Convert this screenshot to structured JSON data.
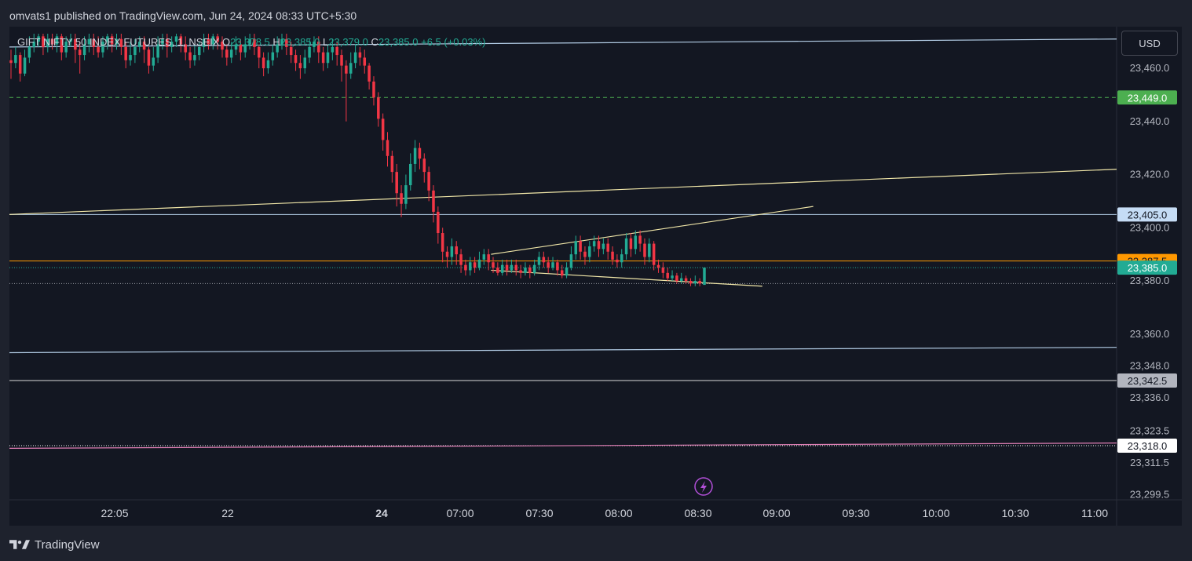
{
  "header": {
    "publisher": "omvats1 published on TradingView.com, Jun 24, 2024 08:33 UTC+5:30"
  },
  "legend": {
    "symbol": "GIFT NIFTY 50 INDEX FUTURES, 1, NSEIX",
    "o_label": "O",
    "o_value": "23,378.5",
    "h_label": "H",
    "h_value": "23,385.0",
    "l_label": "L",
    "l_value": "23,379.0",
    "c_label": "C",
    "c_value": "23,385.0",
    "change": "+6.5 (+0.03%)"
  },
  "currency_button": "USD",
  "footer": {
    "brand": "TradingView"
  },
  "colors": {
    "up": "#22ab94",
    "down": "#f23645",
    "background": "#131722",
    "frame": "#1e222d",
    "trendline": "#f0e6a8",
    "blue_line": "#b3cde6",
    "orange_line": "#ff9800",
    "green_dashed": "#4caf50",
    "pink_line": "#e07fb5",
    "white_line": "#d9d9d9",
    "lightning": "#b24fd8"
  },
  "chart_data": {
    "type": "candlestick",
    "symbol": "GIFT NIFTY 50 INDEX FUTURES",
    "interval": "1",
    "exchange": "NSEIX",
    "currency": "USD",
    "y_range": [
      23293,
      23473
    ],
    "y_ticks": [
      "23,460.0",
      "23,440.0",
      "23,420.0",
      "23,400.0",
      "23,380.0",
      "23,360.0",
      "23,348.0",
      "23,336.0",
      "23,323.5",
      "23,311.5",
      "23,299.5"
    ],
    "y_tick_values": [
      23460,
      23440,
      23420,
      23400,
      23380,
      23360,
      23348,
      23336,
      23323.5,
      23311.5,
      23299.5
    ],
    "x_ticks": [
      {
        "label": "22:05",
        "bold": false
      },
      {
        "label": "22",
        "bold": false
      },
      {
        "label": "24",
        "bold": true
      },
      {
        "label": "07:00",
        "bold": false
      },
      {
        "label": "07:30",
        "bold": false
      },
      {
        "label": "08:00",
        "bold": false
      },
      {
        "label": "08:30",
        "bold": false
      },
      {
        "label": "09:00",
        "bold": false
      },
      {
        "label": "09:30",
        "bold": false
      },
      {
        "label": "10:00",
        "bold": false
      },
      {
        "label": "10:30",
        "bold": false
      },
      {
        "label": "11:00",
        "bold": false
      }
    ],
    "price_tags": [
      {
        "label": "23,449.0",
        "value": 23449,
        "bg": "#4caf50",
        "fg": "#ffffff"
      },
      {
        "label": "23,405.0",
        "value": 23405,
        "bg": "#c5dcf5",
        "fg": "#131722"
      },
      {
        "label": "23,387.5",
        "value": 23387.5,
        "bg": "#ff9800",
        "fg": "#131722"
      },
      {
        "label": "23,385.0",
        "value": 23385,
        "bg": "#22ab94",
        "fg": "#ffffff"
      },
      {
        "label": "23,342.5",
        "value": 23342.5,
        "bg": "#b2b5be",
        "fg": "#131722"
      },
      {
        "label": "23,318.0",
        "value": 23318,
        "bg": "#ffffff",
        "fg": "#131722"
      }
    ],
    "horizontal_lines": [
      {
        "value": 23449,
        "style": "dashed",
        "color": "#4caf50"
      },
      {
        "value": 23405,
        "style": "solid",
        "color": "#b3cde6"
      },
      {
        "value": 23387.5,
        "style": "solid",
        "color": "#ff9800"
      },
      {
        "value": 23385,
        "style": "dotted",
        "color": "#22ab94"
      },
      {
        "value": 23379,
        "style": "dotted",
        "color": "#9598a1"
      },
      {
        "value": 23342.5,
        "style": "solid",
        "color": "#d9d9d9"
      },
      {
        "value": 23318,
        "style": "dotted",
        "color": "#ffffff"
      }
    ],
    "trend_lines": [
      {
        "from": {
          "t": 0,
          "p": 23468
        },
        "to": {
          "t": 1,
          "p": 23471
        },
        "color": "#b3cde6",
        "extend": "right"
      },
      {
        "from": {
          "t": 0,
          "p": 23405
        },
        "to": {
          "t": 1,
          "p": 23422
        },
        "color": "#f0e6a8",
        "extend": "right"
      },
      {
        "from": {
          "t": 0,
          "p": 23353
        },
        "to": {
          "t": 1,
          "p": 23355
        },
        "color": "#b3cde6",
        "extend": "right"
      },
      {
        "from": {
          "t": 0,
          "p": 23317
        },
        "to": {
          "t": 1,
          "p": 23319
        },
        "color": "#e07fb5",
        "extend": "right"
      },
      {
        "from": {
          "t": 0.435,
          "p": 23390
        },
        "to": {
          "t": 0.726,
          "p": 23408
        },
        "color": "#f0e6a8",
        "extend": "none"
      },
      {
        "from": {
          "t": 0.435,
          "p": 23384
        },
        "to": {
          "t": 0.68,
          "p": 23378
        },
        "color": "#f0e6a8",
        "extend": "none"
      }
    ],
    "candles": [
      [
        23463,
        23462,
        23467,
        23456
      ],
      [
        23462,
        23465,
        23468,
        23460
      ],
      [
        23465,
        23458,
        23466,
        23455
      ],
      [
        23458,
        23464,
        23467,
        23457
      ],
      [
        23464,
        23468,
        23472,
        23462
      ],
      [
        23468,
        23470,
        23473,
        23466
      ],
      [
        23470,
        23472,
        23473,
        23468
      ],
      [
        23472,
        23468,
        23473,
        23465
      ],
      [
        23468,
        23471,
        23473,
        23466
      ],
      [
        23471,
        23469,
        23473,
        23467
      ],
      [
        23469,
        23472,
        23473,
        23466
      ],
      [
        23472,
        23466,
        23473,
        23463
      ],
      [
        23466,
        23470,
        23472,
        23464
      ],
      [
        23470,
        23471,
        23473,
        23468
      ],
      [
        23471,
        23467,
        23473,
        23462
      ],
      [
        23467,
        23465,
        23470,
        23458
      ],
      [
        23465,
        23469,
        23472,
        23463
      ],
      [
        23469,
        23471,
        23473,
        23466
      ],
      [
        23471,
        23468,
        23473,
        23465
      ],
      [
        23468,
        23466,
        23472,
        23464
      ],
      [
        23466,
        23470,
        23472,
        23464
      ],
      [
        23470,
        23472,
        23473,
        23467
      ],
      [
        23472,
        23469,
        23473,
        23466
      ],
      [
        23469,
        23471,
        23473,
        23467
      ],
      [
        23471,
        23468,
        23473,
        23465
      ],
      [
        23468,
        23463,
        23470,
        23460
      ],
      [
        23463,
        23465,
        23470,
        23461
      ],
      [
        23465,
        23468,
        23471,
        23462
      ],
      [
        23468,
        23470,
        23472,
        23466
      ],
      [
        23470,
        23467,
        23472,
        23462
      ],
      [
        23467,
        23461,
        23468,
        23458
      ],
      [
        23461,
        23464,
        23468,
        23459
      ],
      [
        23464,
        23469,
        23472,
        23462
      ],
      [
        23469,
        23471,
        23473,
        23467
      ],
      [
        23471,
        23468,
        23473,
        23464
      ],
      [
        23468,
        23470,
        23472,
        23466
      ],
      [
        23470,
        23472,
        23473,
        23468
      ],
      [
        23472,
        23469,
        23473,
        23466
      ],
      [
        23469,
        23466,
        23472,
        23463
      ],
      [
        23466,
        23463,
        23468,
        23460
      ],
      [
        23463,
        23465,
        23469,
        23461
      ],
      [
        23465,
        23468,
        23470,
        23463
      ],
      [
        23468,
        23471,
        23473,
        23466
      ],
      [
        23471,
        23469,
        23473,
        23467
      ],
      [
        23469,
        23472,
        23473,
        23467
      ],
      [
        23472,
        23470,
        23473,
        23467
      ],
      [
        23470,
        23467,
        23472,
        23464
      ],
      [
        23467,
        23464,
        23469,
        23461
      ],
      [
        23464,
        23467,
        23470,
        23462
      ],
      [
        23467,
        23469,
        23472,
        23465
      ],
      [
        23469,
        23466,
        23471,
        23463
      ],
      [
        23466,
        23469,
        23472,
        23464
      ],
      [
        23469,
        23471,
        23473,
        23467
      ],
      [
        23471,
        23468,
        23473,
        23465
      ],
      [
        23468,
        23464,
        23469,
        23460
      ],
      [
        23464,
        23460,
        23466,
        23457
      ],
      [
        23460,
        23463,
        23466,
        23458
      ],
      [
        23463,
        23466,
        23469,
        23461
      ],
      [
        23466,
        23469,
        23472,
        23464
      ],
      [
        23469,
        23471,
        23473,
        23467
      ],
      [
        23471,
        23468,
        23473,
        23465
      ],
      [
        23468,
        23465,
        23470,
        23462
      ],
      [
        23465,
        23462,
        23467,
        23459
      ],
      [
        23462,
        23460,
        23465,
        23456
      ],
      [
        23460,
        23464,
        23467,
        23458
      ],
      [
        23464,
        23468,
        23471,
        23462
      ],
      [
        23468,
        23470,
        23472,
        23466
      ],
      [
        23470,
        23466,
        23472,
        23462
      ],
      [
        23466,
        23462,
        23468,
        23459
      ],
      [
        23462,
        23466,
        23469,
        23460
      ],
      [
        23466,
        23468,
        23471,
        23463
      ],
      [
        23468,
        23465,
        23470,
        23461
      ],
      [
        23465,
        23461,
        23467,
        23455
      ],
      [
        23461,
        23458,
        23463,
        23440
      ],
      [
        23458,
        23462,
        23466,
        23456
      ],
      [
        23462,
        23466,
        23469,
        23460
      ],
      [
        23466,
        23464,
        23468,
        23461
      ],
      [
        23464,
        23461,
        23467,
        23458
      ],
      [
        23461,
        23455,
        23462,
        23452
      ],
      [
        23455,
        23449,
        23457,
        23446
      ],
      [
        23449,
        23441,
        23451,
        23438
      ],
      [
        23441,
        23433,
        23443,
        23429
      ],
      [
        23433,
        23427,
        23436,
        23423
      ],
      [
        23427,
        23421,
        23429,
        23417
      ],
      [
        23421,
        23413,
        23424,
        23408
      ],
      [
        23413,
        23409,
        23416,
        23404
      ],
      [
        23409,
        23416,
        23420,
        23407
      ],
      [
        23416,
        23424,
        23428,
        23414
      ],
      [
        23424,
        23430,
        23433,
        23421
      ],
      [
        23430,
        23426,
        23432,
        23422
      ],
      [
        23426,
        23421,
        23428,
        23417
      ],
      [
        23421,
        23414,
        23423,
        23410
      ],
      [
        23414,
        23406,
        23416,
        23402
      ],
      [
        23406,
        23398,
        23408,
        23394
      ],
      [
        23398,
        23391,
        23400,
        23387
      ],
      [
        23391,
        23389,
        23393,
        23385
      ],
      [
        23389,
        23393,
        23396,
        23386
      ],
      [
        23393,
        23390,
        23395,
        23386
      ],
      [
        23390,
        23386,
        23392,
        23383
      ],
      [
        23386,
        23384,
        23388,
        23382
      ],
      [
        23384,
        23387,
        23389,
        23382
      ],
      [
        23387,
        23385,
        23389,
        23383
      ],
      [
        23385,
        23388,
        23391,
        23384
      ],
      [
        23388,
        23390,
        23392,
        23386
      ],
      [
        23390,
        23387,
        23392,
        23384
      ],
      [
        23387,
        23385,
        23389,
        23383
      ],
      [
        23385,
        23383,
        23387,
        23382
      ],
      [
        23383,
        23386,
        23388,
        23382
      ],
      [
        23386,
        23384,
        23388,
        23382
      ],
      [
        23384,
        23386,
        23388,
        23383
      ],
      [
        23386,
        23384,
        23388,
        23382
      ],
      [
        23384,
        23383,
        23386,
        23381
      ],
      [
        23383,
        23385,
        23387,
        23382
      ],
      [
        23385,
        23383,
        23386,
        23381
      ],
      [
        23383,
        23386,
        23388,
        23382
      ],
      [
        23386,
        23389,
        23391,
        23384
      ],
      [
        23389,
        23387,
        23391,
        23385
      ],
      [
        23387,
        23385,
        23389,
        23383
      ],
      [
        23385,
        23387,
        23389,
        23384
      ],
      [
        23387,
        23384,
        23388,
        23382
      ],
      [
        23384,
        23382,
        23386,
        23381
      ],
      [
        23382,
        23385,
        23387,
        23381
      ],
      [
        23385,
        23390,
        23393,
        23384
      ],
      [
        23390,
        23395,
        23397,
        23388
      ],
      [
        23395,
        23391,
        23397,
        23388
      ],
      [
        23391,
        23389,
        23393,
        23386
      ],
      [
        23389,
        23393,
        23395,
        23387
      ],
      [
        23393,
        23395,
        23397,
        23391
      ],
      [
        23395,
        23392,
        23397,
        23389
      ],
      [
        23392,
        23394,
        23396,
        23390
      ],
      [
        23394,
        23391,
        23396,
        23388
      ],
      [
        23391,
        23388,
        23393,
        23386
      ],
      [
        23388,
        23387,
        23390,
        23385
      ],
      [
        23387,
        23390,
        23392,
        23385
      ],
      [
        23390,
        23396,
        23398,
        23388
      ],
      [
        23396,
        23392,
        23398,
        23389
      ],
      [
        23392,
        23397,
        23399,
        23390
      ],
      [
        23397,
        23394,
        23399,
        23391
      ],
      [
        23394,
        23389,
        23396,
        23386
      ],
      [
        23389,
        23394,
        23396,
        23387
      ],
      [
        23394,
        23386,
        23395,
        23384
      ],
      [
        23386,
        23385,
        23388,
        23383
      ],
      [
        23385,
        23383,
        23387,
        23381
      ],
      [
        23383,
        23381,
        23385,
        23380
      ],
      [
        23381,
        23382,
        23384,
        23380
      ],
      [
        23382,
        23380,
        23383,
        23379
      ],
      [
        23380,
        23381,
        23383,
        23379
      ],
      [
        23381,
        23380,
        23382,
        23379
      ],
      [
        23380,
        23379,
        23381,
        23378
      ],
      [
        23379,
        23380,
        23382,
        23378
      ],
      [
        23380,
        23379,
        23381,
        23378
      ],
      [
        23378.5,
        23385,
        23385,
        23379
      ]
    ]
  }
}
